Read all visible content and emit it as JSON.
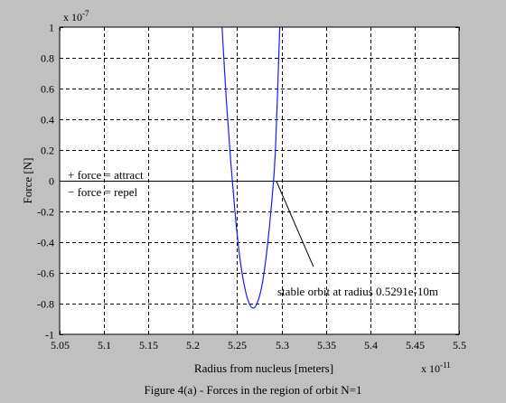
{
  "chart_data": {
    "type": "line",
    "ylabel": "Force [N]",
    "xlabel": "Radius from nucleus [meters]",
    "x_exponent_label": "x 10",
    "x_exponent": "-11",
    "y_exponent_label": "x 10",
    "y_exponent": "-7",
    "xlim": [
      5.05,
      5.5
    ],
    "ylim": [
      -1,
      1
    ],
    "x_ticks": [
      "5.05",
      "5.1",
      "5.15",
      "5.2",
      "5.25",
      "5.3",
      "5.35",
      "5.4",
      "5.45",
      "5.5"
    ],
    "y_ticks": [
      "1",
      "0.8",
      "0.6",
      "0.4",
      "0.2",
      "0",
      "-0.2",
      "-0.4",
      "-0.6",
      "-0.8",
      "-1"
    ],
    "grid": true,
    "series": [
      {
        "color": "#1a1aff",
        "x": [
          5.233,
          5.238,
          5.243,
          5.248,
          5.253,
          5.258,
          5.263,
          5.268,
          5.273,
          5.278,
          5.283,
          5.288,
          5.293,
          5.298
        ],
        "y": [
          1.0,
          0.51,
          0.11,
          -0.23,
          -0.5,
          -0.68,
          -0.79,
          -0.83,
          -0.79,
          -0.68,
          -0.48,
          -0.2,
          0.18,
          1.0
        ]
      }
    ],
    "annotations": {
      "attract": "+ force = attract",
      "repel": "− force = repel",
      "stable": "stable orbit at radius 0.5291e-10m"
    },
    "arrow_from": [
      5.336,
      -0.56
    ],
    "arrow_to": [
      5.294,
      0.0
    ]
  },
  "caption": "Figure 4(a) - Forces in the region of orbit N=1"
}
